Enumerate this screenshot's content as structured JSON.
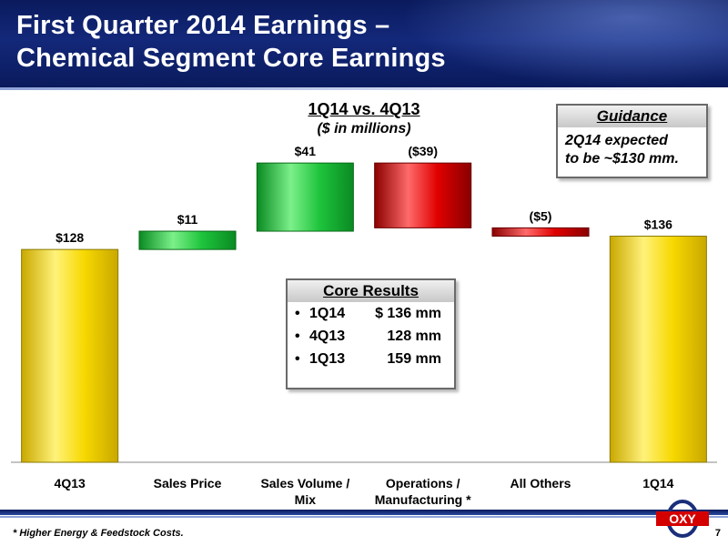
{
  "header": {
    "title_line1": "First Quarter 2014 Earnings –",
    "title_line2": "Chemical Segment Core Earnings"
  },
  "chart_data": {
    "type": "waterfall",
    "title": "1Q14 vs. 4Q13",
    "subtitle": "($ in millions)",
    "categories": [
      "4Q13",
      "Sales Price",
      "Sales Volume / Mix",
      "Operations / Manufacturing *",
      "All Others",
      "1Q14"
    ],
    "values": [
      128,
      11,
      41,
      -39,
      -5,
      136
    ],
    "value_labels": [
      "$128",
      "$11",
      "$41",
      "($39)",
      "($5)",
      "$136"
    ],
    "kinds": [
      "total",
      "delta",
      "delta",
      "delta",
      "delta",
      "total"
    ],
    "colors": {
      "total": "#f7d800",
      "increase": "#1ec43c",
      "decrease": "#e00000"
    },
    "ylim": [
      0,
      185
    ]
  },
  "guidance": {
    "header": "Guidance",
    "line1": "2Q14 expected",
    "line2": "to be ~$130 mm."
  },
  "core_results": {
    "header": "Core Results",
    "rows": [
      {
        "period": "1Q14",
        "value": "$ 136 mm"
      },
      {
        "period": "4Q13",
        "value": "128 mm"
      },
      {
        "period": "1Q13",
        "value": "159 mm"
      }
    ]
  },
  "footnote": "* Higher Energy & Feedstock Costs.",
  "page_number": "7",
  "logo_text": "OXY"
}
